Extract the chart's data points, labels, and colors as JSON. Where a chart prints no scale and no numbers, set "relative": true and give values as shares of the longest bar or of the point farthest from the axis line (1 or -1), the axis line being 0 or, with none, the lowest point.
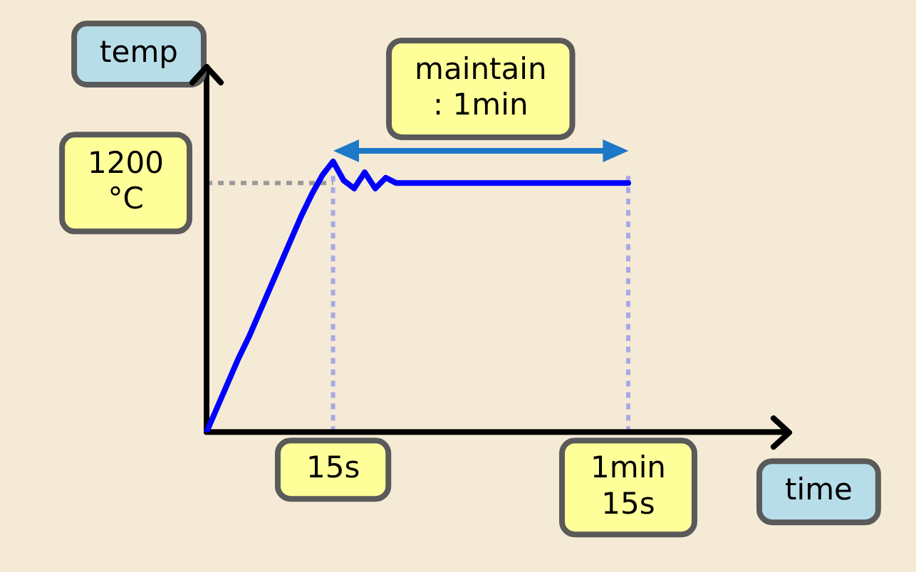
{
  "chart_data": {
    "type": "line",
    "xlabel": "time",
    "ylabel": "temp",
    "relative": true,
    "categories": [
      null,
      null,
      null,
      null,
      null,
      null,
      null,
      null,
      null,
      null,
      null,
      null,
      "15s",
      null,
      null,
      null,
      null,
      null,
      null,
      null,
      null,
      null,
      null,
      null,
      null,
      null,
      null,
      null,
      null,
      null,
      null,
      null,
      null,
      null,
      null,
      null,
      null,
      null,
      null,
      null,
      "1min\n15s"
    ],
    "series": [
      {
        "color": "#0000ff",
        "values": [
          0,
          0.09,
          0.18,
          0.27,
          0.35,
          0.44,
          0.53,
          0.62,
          0.71,
          0.8,
          0.88,
          0.95,
          1,
          0.93,
          0.9,
          0.96,
          0.9,
          0.94,
          0.92,
          0.92,
          0.92,
          0.92,
          0.92,
          0.92,
          0.92,
          0.92,
          0.92,
          0.92,
          0.92,
          0.92,
          0.92,
          0.92,
          0.92,
          0.92,
          0.92,
          0.92,
          0.92,
          0.92,
          0.92,
          0.92,
          0.92
        ]
      }
    ],
    "ref_lines": [
      {
        "axis": "y",
        "value": 0.92,
        "label": "1200\n°C",
        "color": "#999999",
        "line_style": "dotted"
      },
      {
        "axis": "x",
        "value": "15s",
        "label": null,
        "color": "#a8a8e6",
        "line_style": "dotted"
      },
      {
        "axis": "x",
        "value": "1min\n15s",
        "label": null,
        "color": "#a8a8e6",
        "line_style": "dotted"
      }
    ],
    "annotations": [
      "maintain\n: 1min"
    ],
    "marker": "none",
    "line_style": "solid",
    "grid": false
  }
}
